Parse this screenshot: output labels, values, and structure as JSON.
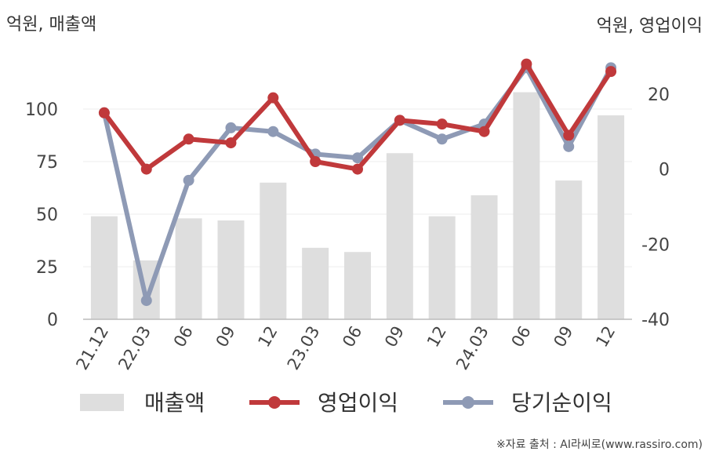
{
  "chart_data": {
    "type": "bar+line",
    "left_unit_label": "억원, 매출액",
    "right_unit_label": "억원, 영업이익",
    "categories": [
      "21.12",
      "22.03",
      "06",
      "09",
      "12",
      "23.03",
      "06",
      "09",
      "12",
      "24.03",
      "06",
      "09",
      "12"
    ],
    "left_axis": {
      "ylim": [
        0,
        125
      ],
      "ticks": [
        "0",
        "25",
        "50",
        "75",
        "100"
      ]
    },
    "right_axis": {
      "ylim": [
        -40,
        30
      ],
      "ticks": [
        "-40",
        "-20",
        "0",
        "20"
      ]
    },
    "series": [
      {
        "name": "매출액",
        "type": "bar",
        "axis": "left",
        "color": "#dedede",
        "values": [
          49,
          28,
          48,
          47,
          65,
          34,
          32,
          79,
          49,
          59,
          108,
          66,
          97
        ]
      },
      {
        "name": "영업이익",
        "type": "line",
        "axis": "right",
        "color": "#c0393b",
        "values": [
          15,
          0,
          8,
          7,
          19,
          2,
          0,
          13,
          12,
          10,
          28,
          9,
          26
        ]
      },
      {
        "name": "당기순이익",
        "type": "line",
        "axis": "right",
        "color": "#8e9ab5",
        "values": [
          15,
          -35,
          -3,
          11,
          10,
          4,
          3,
          13,
          8,
          12,
          27,
          6,
          27
        ]
      }
    ],
    "grid": true,
    "legend_position": "bottom"
  },
  "source": "※자료 출처 : AI라씨로(www.rassiro.com)"
}
